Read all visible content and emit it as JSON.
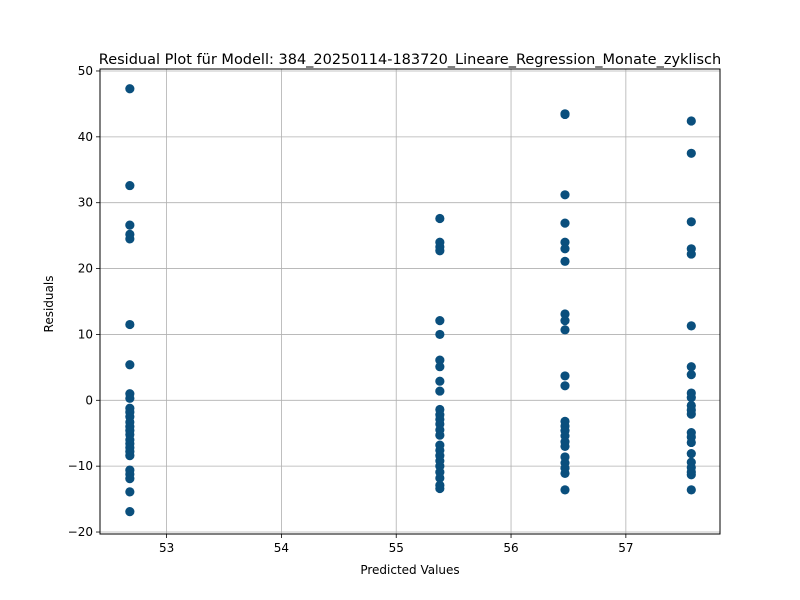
{
  "chart_data": {
    "type": "scatter",
    "title": "Residual Plot für Modell: 384_20250114-183720_Lineare_Regression_Monate_zyklisch",
    "xlabel": "Predicted Values",
    "ylabel": "Residuals",
    "xlim": [
      52.42,
      57.82
    ],
    "ylim": [
      -20.3,
      50.3
    ],
    "xticks": [
      53,
      54,
      55,
      56,
      57
    ],
    "yticks": [
      -20,
      -10,
      0,
      10,
      20,
      30,
      40,
      50
    ],
    "grid": true,
    "point_color": "#0a4f7d",
    "series": [
      {
        "points": [
          [
            52.68,
            47.3
          ],
          [
            52.68,
            32.6
          ],
          [
            52.68,
            26.6
          ],
          [
            52.68,
            25.2
          ],
          [
            52.68,
            24.5
          ],
          [
            52.68,
            11.5
          ],
          [
            52.68,
            5.4
          ],
          [
            52.68,
            1.0
          ],
          [
            52.68,
            0.3
          ],
          [
            52.68,
            -1.2
          ],
          [
            52.68,
            -1.8
          ],
          [
            52.68,
            -2.5
          ],
          [
            52.68,
            -3.3
          ],
          [
            52.68,
            -4.0
          ],
          [
            52.68,
            -4.6
          ],
          [
            52.68,
            -5.2
          ],
          [
            52.68,
            -6.0
          ],
          [
            52.68,
            -6.6
          ],
          [
            52.68,
            -7.2
          ],
          [
            52.68,
            -7.8
          ],
          [
            52.68,
            -8.4
          ],
          [
            52.68,
            -10.6
          ],
          [
            52.68,
            -11.2
          ],
          [
            52.68,
            -11.9
          ],
          [
            52.68,
            -13.9
          ],
          [
            52.68,
            -16.9
          ],
          [
            55.38,
            27.6
          ],
          [
            55.38,
            24.0
          ],
          [
            55.38,
            23.3
          ],
          [
            55.38,
            22.7
          ],
          [
            55.38,
            12.1
          ],
          [
            55.38,
            10.0
          ],
          [
            55.38,
            6.1
          ],
          [
            55.38,
            5.1
          ],
          [
            55.38,
            2.9
          ],
          [
            55.38,
            1.4
          ],
          [
            55.38,
            -1.4
          ],
          [
            55.38,
            -2.2
          ],
          [
            55.38,
            -2.9
          ],
          [
            55.38,
            -3.6
          ],
          [
            55.38,
            -4.5
          ],
          [
            55.38,
            -5.3
          ],
          [
            55.38,
            -6.8
          ],
          [
            55.38,
            -7.6
          ],
          [
            55.38,
            -8.4
          ],
          [
            55.38,
            -9.2
          ],
          [
            55.38,
            -10.0
          ],
          [
            55.38,
            -10.9
          ],
          [
            55.38,
            -11.8
          ],
          [
            55.38,
            -12.9
          ],
          [
            55.38,
            -13.4
          ],
          [
            56.47,
            43.5
          ],
          [
            56.47,
            43.4
          ],
          [
            56.47,
            31.2
          ],
          [
            56.47,
            26.9
          ],
          [
            56.47,
            24.0
          ],
          [
            56.47,
            23.0
          ],
          [
            56.47,
            21.1
          ],
          [
            56.47,
            13.1
          ],
          [
            56.47,
            12.1
          ],
          [
            56.47,
            10.7
          ],
          [
            56.47,
            3.7
          ],
          [
            56.47,
            2.2
          ],
          [
            56.47,
            -3.2
          ],
          [
            56.47,
            -3.9
          ],
          [
            56.47,
            -4.6
          ],
          [
            56.47,
            -5.4
          ],
          [
            56.47,
            -6.3
          ],
          [
            56.47,
            -7.0
          ],
          [
            56.47,
            -8.6
          ],
          [
            56.47,
            -9.5
          ],
          [
            56.47,
            -10.3
          ],
          [
            56.47,
            -11.1
          ],
          [
            56.47,
            -13.6
          ],
          [
            57.57,
            42.4
          ],
          [
            57.57,
            37.5
          ],
          [
            57.57,
            27.1
          ],
          [
            57.57,
            23.0
          ],
          [
            57.57,
            22.2
          ],
          [
            57.57,
            11.3
          ],
          [
            57.57,
            5.1
          ],
          [
            57.57,
            3.9
          ],
          [
            57.57,
            1.1
          ],
          [
            57.57,
            0.4
          ],
          [
            57.57,
            -0.8
          ],
          [
            57.57,
            -1.5
          ],
          [
            57.57,
            -2.1
          ],
          [
            57.57,
            -4.9
          ],
          [
            57.57,
            -5.6
          ],
          [
            57.57,
            -6.4
          ],
          [
            57.57,
            -8.1
          ],
          [
            57.57,
            -9.4
          ],
          [
            57.57,
            -10.2
          ],
          [
            57.57,
            -10.9
          ],
          [
            57.57,
            -11.3
          ],
          [
            57.57,
            -13.6
          ]
        ]
      }
    ]
  }
}
